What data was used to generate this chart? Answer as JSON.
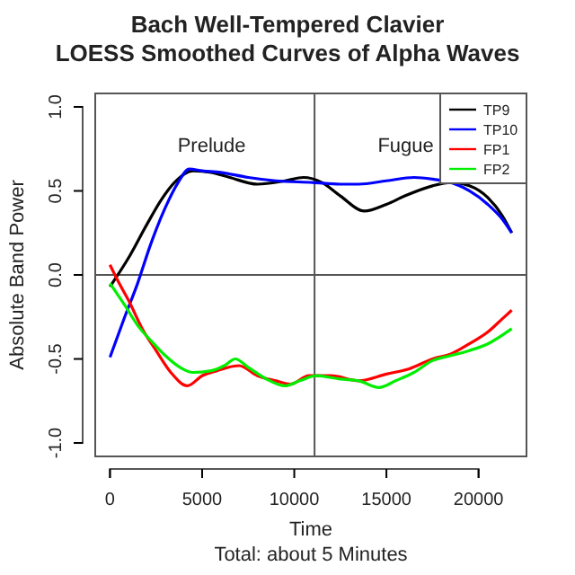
{
  "chart_data": {
    "type": "line",
    "title": "Bach Well-Tempered Clavier\nLOESS Smoothed Curves of Alpha Waves",
    "xlabel": "Time",
    "ylabel": "Absolute Band Power",
    "xlim": [
      -800,
      22600
    ],
    "ylim": [
      -1.08,
      1.08
    ],
    "xticks": [
      0,
      5000,
      10000,
      15000,
      20000
    ],
    "yticks": [
      {
        "value": -1,
        "label": "-1.0"
      },
      {
        "value": -0.5,
        "label": "-0.5"
      },
      {
        "value": 0,
        "label": "0.0"
      },
      {
        "value": 0.5,
        "label": "0.5"
      },
      {
        "value": 1,
        "label": "1.0"
      }
    ],
    "legend": "top right",
    "grid": false,
    "line_style": "solid",
    "marker": "none",
    "ref_lines": [
      {
        "axis": "y",
        "value": 0,
        "color": "#555555"
      },
      {
        "axis": "x",
        "value": 11100,
        "color": "#555555"
      }
    ],
    "annotations": [
      "Prelude",
      "Fugue",
      "Total: about 5 Minutes"
    ],
    "series": [
      {
        "name": "TP9",
        "color": "#000000",
        "x": [
          0,
          1000,
          2000,
          2800,
          3500,
          4500,
          5500,
          6500,
          8000,
          9500,
          10500,
          11500,
          12500,
          13800,
          15000,
          16000,
          17500,
          18500,
          19500,
          20500,
          21300,
          21800
        ],
        "values": [
          -0.07,
          0.1,
          0.3,
          0.45,
          0.55,
          0.62,
          0.61,
          0.58,
          0.54,
          0.56,
          0.58,
          0.55,
          0.47,
          0.38,
          0.42,
          0.47,
          0.53,
          0.55,
          0.53,
          0.46,
          0.35,
          0.25
        ]
      },
      {
        "name": "TP10",
        "color": "#0000ff",
        "x": [
          0,
          800,
          1500,
          2200,
          3000,
          3700,
          4300,
          5000,
          6000,
          7500,
          9000,
          11000,
          12500,
          13500,
          15000,
          16500,
          17500,
          18500,
          19500,
          20500,
          21300,
          21800
        ],
        "values": [
          -0.49,
          -0.25,
          -0.05,
          0.18,
          0.4,
          0.55,
          0.63,
          0.62,
          0.61,
          0.58,
          0.56,
          0.55,
          0.54,
          0.54,
          0.56,
          0.58,
          0.57,
          0.55,
          0.5,
          0.42,
          0.33,
          0.25
        ]
      },
      {
        "name": "FP1",
        "color": "#ff0000",
        "x": [
          0,
          500,
          1000,
          1800,
          2500,
          3300,
          4200,
          5000,
          5800,
          7000,
          8000,
          9000,
          9800,
          10800,
          12000,
          13500,
          15000,
          16200,
          17500,
          18500,
          19500,
          20500,
          21300,
          21800
        ],
        "values": [
          0.06,
          -0.05,
          -0.15,
          -0.33,
          -0.45,
          -0.58,
          -0.66,
          -0.6,
          -0.57,
          -0.54,
          -0.6,
          -0.63,
          -0.65,
          -0.6,
          -0.6,
          -0.63,
          -0.59,
          -0.56,
          -0.5,
          -0.47,
          -0.41,
          -0.34,
          -0.26,
          -0.21
        ]
      },
      {
        "name": "FP2",
        "color": "#00ee00",
        "x": [
          0,
          800,
          1500,
          2300,
          3000,
          3800,
          4500,
          5500,
          6200,
          6800,
          7500,
          8500,
          9500,
          10300,
          11200,
          12500,
          13500,
          14600,
          15500,
          16500,
          17500,
          18500,
          19500,
          20500,
          21800
        ],
        "values": [
          -0.05,
          -0.18,
          -0.3,
          -0.4,
          -0.48,
          -0.55,
          -0.58,
          -0.57,
          -0.54,
          -0.5,
          -0.55,
          -0.62,
          -0.66,
          -0.63,
          -0.6,
          -0.62,
          -0.63,
          -0.67,
          -0.63,
          -0.58,
          -0.51,
          -0.48,
          -0.45,
          -0.41,
          -0.32
        ]
      }
    ]
  }
}
